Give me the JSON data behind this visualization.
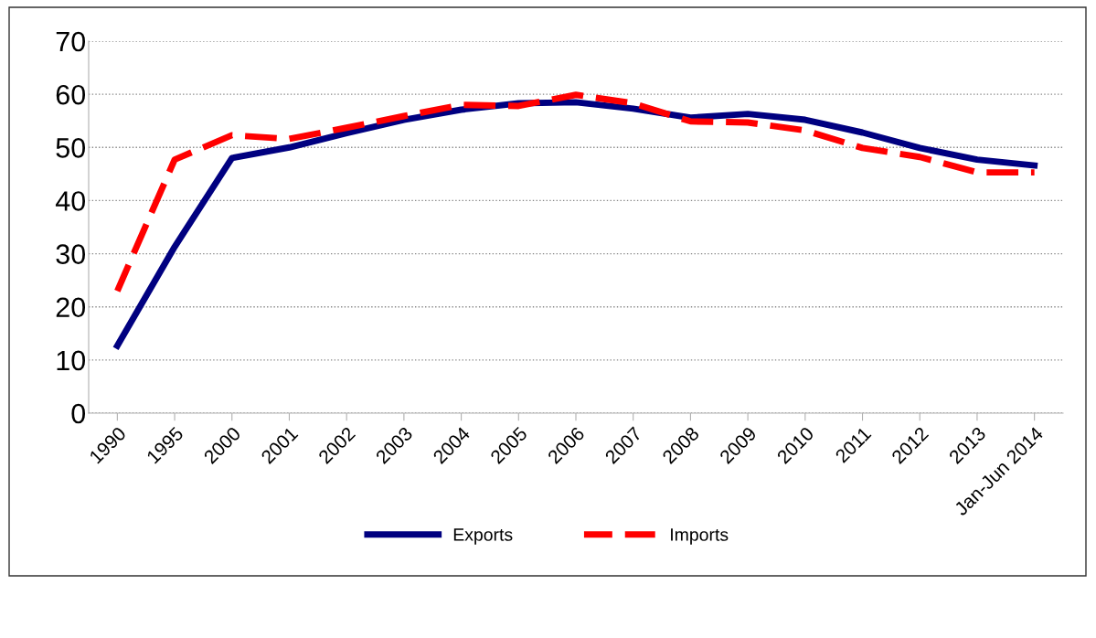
{
  "chart_data": {
    "type": "line",
    "categories": [
      "1990",
      "1995",
      "2000",
      "2001",
      "2002",
      "2003",
      "2004",
      "2005",
      "2006",
      "2007",
      "2008",
      "2009",
      "2010",
      "2011",
      "2012",
      "2013",
      "Jan-Jun 2014"
    ],
    "series": [
      {
        "name": "Exports",
        "color": "#000080",
        "line_style": "solid",
        "values": [
          12.7,
          31.3,
          48,
          50,
          52.7,
          55.2,
          57.1,
          58.3,
          58.5,
          57.3,
          55.6,
          56.3,
          55.2,
          52.8,
          49.9,
          47.7,
          46.6
        ]
      },
      {
        "name": "Imports",
        "color": "#ff0000",
        "line_style": "dashed",
        "values": [
          23,
          47.7,
          52.3,
          51.6,
          53.7,
          55.9,
          58,
          57.8,
          59.9,
          58.3,
          54.9,
          54.7,
          53.2,
          49.9,
          48.2,
          45.3,
          45.3
        ]
      }
    ],
    "ylim": [
      0,
      70
    ],
    "yticks": [
      0,
      10,
      20,
      30,
      40,
      50,
      60,
      70
    ],
    "grid": "y",
    "legend": "bottom",
    "marker": "none"
  }
}
